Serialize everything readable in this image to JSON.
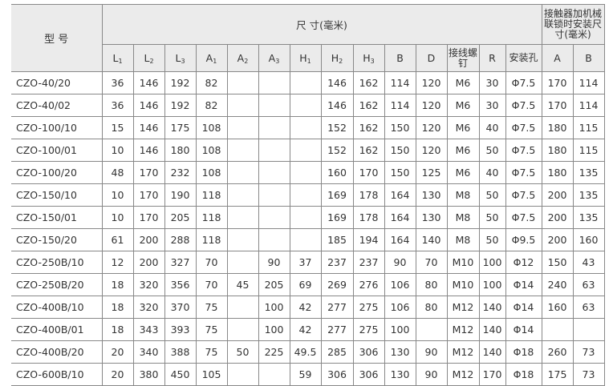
{
  "header": {
    "model": "型 号",
    "dimensions_group": "尺 寸(毫米)",
    "interlock_group": "接触器加机械联锁时安装尺寸(毫米)",
    "columns": [
      {
        "base": "L",
        "sub": "1"
      },
      {
        "base": "L",
        "sub": "2"
      },
      {
        "base": "L",
        "sub": "3"
      },
      {
        "base": "A",
        "sub": "1"
      },
      {
        "base": "A",
        "sub": "2"
      },
      {
        "base": "A",
        "sub": "3"
      },
      {
        "base": "H",
        "sub": "1"
      },
      {
        "base": "H",
        "sub": "2"
      },
      {
        "base": "H",
        "sub": "3"
      },
      {
        "base": "B",
        "sub": ""
      },
      {
        "base": "D",
        "sub": ""
      },
      {
        "base": "接线螺钉",
        "sub": ""
      },
      {
        "base": "R",
        "sub": ""
      },
      {
        "base": "安装孔",
        "sub": ""
      }
    ],
    "interlock_columns": [
      "A",
      "B"
    ]
  },
  "rows": [
    [
      "CZO-40/20",
      "36",
      "146",
      "192",
      "82",
      "",
      "",
      "",
      "146",
      "162",
      "114",
      "120",
      "M6",
      "30",
      "Φ7.5",
      "170",
      "114"
    ],
    [
      "CZO-40/02",
      "36",
      "146",
      "192",
      "82",
      "",
      "",
      "",
      "146",
      "162",
      "114",
      "120",
      "M6",
      "30",
      "Φ7.5",
      "170",
      "114"
    ],
    [
      "CZO-100/10",
      "15",
      "146",
      "175",
      "108",
      "",
      "",
      "",
      "152",
      "162",
      "150",
      "120",
      "M6",
      "40",
      "Φ7.5",
      "180",
      "115"
    ],
    [
      "CZO-100/01",
      "10",
      "146",
      "180",
      "108",
      "",
      "",
      "",
      "152",
      "162",
      "150",
      "120",
      "M6",
      "50",
      "Φ7.5",
      "180",
      "115"
    ],
    [
      "CZO-100/20",
      "48",
      "170",
      "232",
      "108",
      "",
      "",
      "",
      "160",
      "170",
      "150",
      "125",
      "M6",
      "40",
      "Φ7.5",
      "180",
      "135"
    ],
    [
      "CZO-150/10",
      "10",
      "170",
      "190",
      "118",
      "",
      "",
      "",
      "169",
      "178",
      "164",
      "130",
      "M8",
      "50",
      "Φ7.5",
      "200",
      "135"
    ],
    [
      "CZO-150/01",
      "10",
      "170",
      "205",
      "118",
      "",
      "",
      "",
      "169",
      "178",
      "164",
      "130",
      "M8",
      "50",
      "Φ7.5",
      "200",
      "135"
    ],
    [
      "CZO-150/20",
      "61",
      "200",
      "288",
      "118",
      "",
      "",
      "",
      "185",
      "194",
      "164",
      "140",
      "M8",
      "50",
      "Φ9.5",
      "200",
      "160"
    ],
    [
      "CZO-250B/10",
      "12",
      "200",
      "327",
      "70",
      "",
      "90",
      "37",
      "237",
      "237",
      "90",
      "70",
      "M10",
      "100",
      "Φ12",
      "150",
      "43"
    ],
    [
      "CZO-250B/20",
      "18",
      "320",
      "356",
      "70",
      "45",
      "205",
      "69",
      "269",
      "276",
      "106",
      "80",
      "M10",
      "100",
      "Φ14",
      "240",
      "63"
    ],
    [
      "CZO-400B/10",
      "18",
      "320",
      "370",
      "75",
      "",
      "100",
      "42",
      "277",
      "275",
      "106",
      "80",
      "M12",
      "140",
      "Φ14",
      "160",
      "63"
    ],
    [
      "CZO-400B/01",
      "18",
      "343",
      "393",
      "75",
      "",
      "100",
      "42",
      "277",
      "275",
      "100",
      "",
      "M12",
      "140",
      "Φ14",
      "",
      ""
    ],
    [
      "CZO-400B/20",
      "20",
      "340",
      "388",
      "75",
      "50",
      "225",
      "49.5",
      "285",
      "306",
      "130",
      "90",
      "M12",
      "140",
      "Φ18",
      "260",
      "73"
    ],
    [
      "CZO-600B/10",
      "20",
      "380",
      "450",
      "105",
      "",
      "",
      "59",
      "306",
      "306",
      "130",
      "90",
      "M12",
      "170",
      "Φ18",
      "175",
      "73"
    ]
  ]
}
